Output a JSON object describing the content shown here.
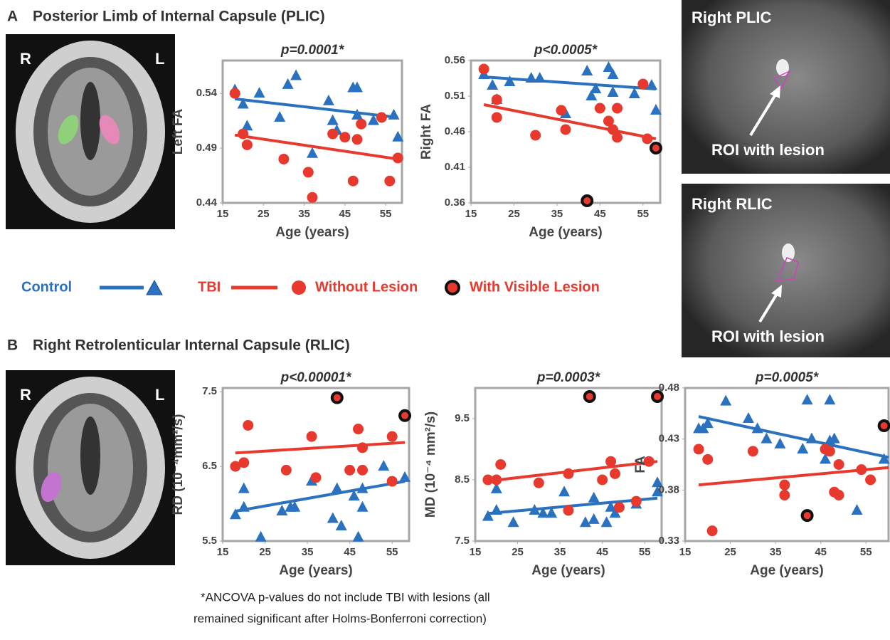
{
  "panels": {
    "a_letter": "A",
    "a_title": "Posterior Limb of Internal Capsule (PLIC)",
    "b_letter": "B",
    "b_title": "Right Retrolenticular Internal Capsule (RLIC)"
  },
  "brain_labels": {
    "a_right": "R",
    "a_left": "L",
    "b_right": "R",
    "b_left": "L"
  },
  "mri": {
    "top_title": "Right PLIC",
    "top_note": "ROI with lesion",
    "bottom_title": "Right RLIC",
    "bottom_note": "ROI with lesion"
  },
  "footnote": [
    "*ANCOVA p-values do not include TBI with lesions (all",
    "remained significant after Holms-Bonferroni correction)"
  ],
  "chart_data": [
    {
      "type": "scatter",
      "title": "p=0.0001*",
      "x_label": "Age (years)",
      "y_label": "Left FA",
      "xlim": [
        15,
        59
      ],
      "xticks": [
        15,
        25,
        35,
        45,
        55
      ],
      "ylim": [
        0.44,
        0.57
      ],
      "yticks": [
        0.44,
        0.49,
        0.54
      ],
      "series": [
        {
          "name": "Control",
          "marker": "triangle",
          "color": "#2a72c0",
          "x": [
            18,
            20,
            21,
            24,
            29,
            31,
            33,
            37,
            41,
            42,
            43,
            47,
            48,
            48,
            52,
            57,
            58
          ],
          "values": [
            0.543,
            0.53,
            0.51,
            0.54,
            0.518,
            0.548,
            0.556,
            0.485,
            0.533,
            0.515,
            0.506,
            0.545,
            0.545,
            0.52,
            0.515,
            0.52,
            0.5
          ]
        },
        {
          "name": "Without Lesion",
          "marker": "circle",
          "color": "#e8392e",
          "x": [
            18,
            20,
            21,
            30,
            36,
            37,
            42,
            45,
            47,
            48,
            49,
            54,
            56,
            58
          ],
          "values": [
            0.54,
            0.503,
            0.493,
            0.48,
            0.468,
            0.445,
            0.503,
            0.5,
            0.46,
            0.498,
            0.512,
            0.518,
            0.46,
            0.481
          ]
        }
      ],
      "fits": [
        {
          "name": "Control",
          "color": "#2a72c0",
          "x": [
            18,
            58
          ],
          "values": [
            0.535,
            0.518
          ]
        },
        {
          "name": "TBI",
          "color": "#e8392e",
          "x": [
            18,
            58
          ],
          "values": [
            0.502,
            0.48
          ]
        }
      ]
    },
    {
      "type": "scatter",
      "title": "p<0.0005*",
      "x_label": "Age (years)",
      "y_label": "Right FA",
      "xlim": [
        15,
        59
      ],
      "xticks": [
        15,
        25,
        35,
        45,
        55
      ],
      "ylim": [
        0.36,
        0.56
      ],
      "yticks": [
        0.36,
        0.41,
        0.46,
        0.51,
        0.56
      ],
      "series": [
        {
          "name": "Control",
          "marker": "triangle",
          "color": "#2a72c0",
          "x": [
            18,
            20,
            21,
            24,
            29,
            31,
            37,
            42,
            43,
            44,
            47,
            48,
            48,
            53,
            57,
            58
          ],
          "values": [
            0.54,
            0.525,
            0.505,
            0.53,
            0.535,
            0.535,
            0.485,
            0.545,
            0.51,
            0.52,
            0.55,
            0.54,
            0.515,
            0.513,
            0.525,
            0.49
          ]
        },
        {
          "name": "Without Lesion",
          "marker": "circle",
          "color": "#e8392e",
          "x": [
            18,
            21,
            21,
            30,
            36,
            37,
            45,
            47,
            48,
            49,
            49,
            55,
            56
          ],
          "values": [
            0.548,
            0.505,
            0.48,
            0.455,
            0.49,
            0.463,
            0.493,
            0.475,
            0.463,
            0.493,
            0.452,
            0.527,
            0.45
          ]
        },
        {
          "name": "With Visible Lesion",
          "marker": "lesion",
          "color": "#e8392e",
          "x": [
            42,
            58
          ],
          "values": [
            0.363,
            0.437
          ]
        }
      ],
      "fits": [
        {
          "name": "Control",
          "color": "#2a72c0",
          "x": [
            18,
            58
          ],
          "values": [
            0.537,
            0.52
          ]
        },
        {
          "name": "TBI",
          "color": "#e8392e",
          "x": [
            18,
            58
          ],
          "values": [
            0.498,
            0.45
          ]
        }
      ]
    },
    {
      "type": "scatter",
      "title": "p<0.00001*",
      "x_label": "Age (years)",
      "y_label": "RD (10⁻⁴mm²/s)",
      "xlim": [
        15,
        59
      ],
      "xticks": [
        15,
        25,
        35,
        45,
        55
      ],
      "ylim": [
        5.5,
        7.55
      ],
      "yticks": [
        5.5,
        6.5,
        7.5
      ],
      "series": [
        {
          "name": "Control",
          "marker": "triangle",
          "color": "#2a72c0",
          "x": [
            18,
            20,
            20,
            24,
            29,
            31,
            32,
            36,
            41,
            42,
            43,
            46,
            47,
            48,
            48,
            53,
            58
          ],
          "values": [
            5.85,
            6.2,
            5.95,
            5.55,
            5.9,
            5.95,
            5.95,
            6.3,
            5.8,
            6.2,
            5.7,
            6.1,
            5.55,
            6.2,
            5.95,
            6.5,
            6.35
          ]
        },
        {
          "name": "Without Lesion",
          "marker": "circle",
          "color": "#e8392e",
          "x": [
            18,
            20,
            21,
            30,
            36,
            37,
            45,
            47,
            48,
            48,
            55,
            55
          ],
          "values": [
            6.5,
            6.55,
            7.05,
            6.45,
            6.9,
            6.35,
            6.45,
            7.0,
            6.75,
            6.45,
            6.9,
            6.3
          ]
        },
        {
          "name": "With Visible Lesion",
          "marker": "lesion",
          "color": "#e8392e",
          "x": [
            42,
            58
          ],
          "values": [
            7.42,
            7.18
          ]
        }
      ],
      "fits": [
        {
          "name": "Control",
          "color": "#2a72c0",
          "x": [
            18,
            58
          ],
          "values": [
            5.9,
            6.3
          ]
        },
        {
          "name": "TBI",
          "color": "#e8392e",
          "x": [
            18,
            58
          ],
          "values": [
            6.68,
            6.82
          ]
        }
      ]
    },
    {
      "type": "scatter",
      "title": "p=0.0003*",
      "x_label": "Age (years)",
      "y_label": "MD (10⁻⁴ mm²/s)",
      "xlim": [
        15,
        59
      ],
      "xticks": [
        15,
        25,
        35,
        45,
        55
      ],
      "ylim": [
        7.5,
        10.0
      ],
      "yticks": [
        7.5,
        8.5,
        9.5
      ],
      "series": [
        {
          "name": "Control",
          "marker": "triangle",
          "color": "#2a72c0",
          "x": [
            18,
            20,
            20,
            24,
            29,
            31,
            33,
            36,
            41,
            43,
            43,
            46,
            47,
            48,
            53,
            58,
            58
          ],
          "values": [
            7.9,
            8.35,
            8.0,
            7.8,
            8.0,
            7.95,
            7.95,
            8.3,
            7.8,
            7.85,
            8.2,
            7.8,
            8.05,
            7.95,
            8.1,
            8.3,
            8.45
          ]
        },
        {
          "name": "Without Lesion",
          "marker": "circle",
          "color": "#e8392e",
          "x": [
            18,
            20,
            21,
            30,
            37,
            37,
            45,
            47,
            48,
            49,
            53,
            56
          ],
          "values": [
            8.5,
            8.5,
            8.75,
            8.45,
            8.6,
            8.0,
            8.5,
            8.8,
            8.6,
            8.05,
            8.15,
            8.8
          ]
        },
        {
          "name": "With Visible Lesion",
          "marker": "lesion",
          "color": "#e8392e",
          "x": [
            42,
            58
          ],
          "values": [
            9.86,
            9.86
          ]
        }
      ],
      "fits": [
        {
          "name": "Control",
          "color": "#2a72c0",
          "x": [
            18,
            58
          ],
          "values": [
            7.95,
            8.2
          ]
        },
        {
          "name": "TBI",
          "color": "#e8392e",
          "x": [
            18,
            58
          ],
          "values": [
            8.48,
            8.8
          ]
        }
      ]
    },
    {
      "type": "scatter",
      "title": "p=0.0005*",
      "x_label": "Age (years)",
      "y_label": "FA",
      "xlim": [
        15,
        60
      ],
      "xticks": [
        15,
        25,
        35,
        45,
        55
      ],
      "ylim": [
        0.33,
        0.48
      ],
      "yticks": [
        0.33,
        0.38,
        0.43,
        0.48
      ],
      "series": [
        {
          "name": "Control",
          "marker": "triangle",
          "color": "#2a72c0",
          "x": [
            18,
            19,
            20,
            24,
            29,
            31,
            33,
            36,
            41,
            42,
            43,
            46,
            47,
            47,
            48,
            53,
            59
          ],
          "values": [
            0.44,
            0.44,
            0.445,
            0.467,
            0.45,
            0.44,
            0.43,
            0.425,
            0.42,
            0.468,
            0.43,
            0.41,
            0.468,
            0.428,
            0.43,
            0.36,
            0.41
          ]
        },
        {
          "name": "Without Lesion",
          "marker": "circle",
          "color": "#e8392e",
          "x": [
            18,
            20,
            21,
            30,
            37,
            37,
            46,
            47,
            48,
            49,
            49,
            54,
            56
          ],
          "values": [
            0.42,
            0.41,
            0.34,
            0.418,
            0.375,
            0.385,
            0.42,
            0.418,
            0.378,
            0.375,
            0.405,
            0.4,
            0.39
          ]
        },
        {
          "name": "With Visible Lesion",
          "marker": "lesion",
          "color": "#e8392e",
          "x": [
            42,
            59
          ],
          "values": [
            0.355,
            0.443
          ]
        }
      ],
      "fits": [
        {
          "name": "Control",
          "color": "#2a72c0",
          "x": [
            18,
            60
          ],
          "values": [
            0.452,
            0.412
          ]
        },
        {
          "name": "TBI",
          "color": "#e8392e",
          "x": [
            18,
            60
          ],
          "values": [
            0.385,
            0.402
          ]
        }
      ]
    }
  ]
}
